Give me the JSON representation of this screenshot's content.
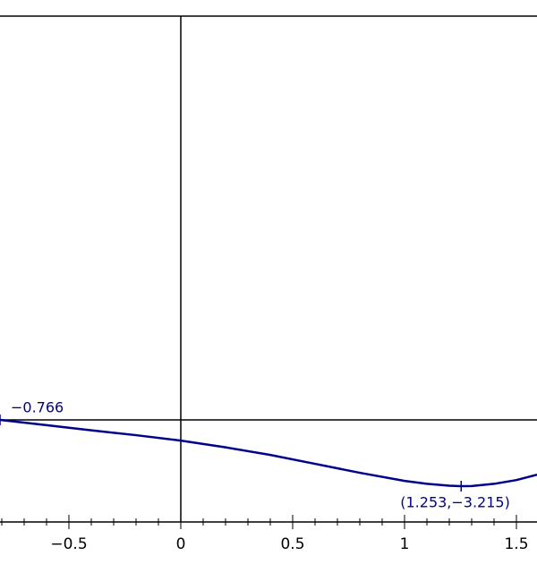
{
  "chart_data": {
    "type": "line",
    "x": [
      -0.808,
      -0.6,
      -0.4,
      -0.2,
      0,
      0.2,
      0.4,
      0.6,
      0.8,
      1,
      1.1,
      1.2,
      1.253,
      1.3,
      1.4,
      1.5,
      1.592
    ],
    "series": [
      {
        "color": "#00008b",
        "values": [
          -0.766,
          -0.96,
          -1.15,
          -1.33,
          -1.53,
          -1.78,
          -2.06,
          -2.39,
          -2.72,
          -3.02,
          -3.13,
          -3.2,
          -3.215,
          -3.21,
          -3.13,
          -2.99,
          -2.79
        ]
      }
    ],
    "xlim": [
      -0.808,
      1.592
    ],
    "ylim": [
      -4.54,
      14.17
    ],
    "xticks": [
      {
        "value": -0.5,
        "label": "−0.5"
      },
      0,
      0.5,
      1,
      1.5
    ],
    "xminorticks": [
      -0.8,
      -0.7,
      -0.6,
      -0.4,
      -0.3,
      -0.2,
      -0.1,
      0.1,
      0.2,
      0.3,
      0.4,
      0.6,
      0.7,
      0.8,
      0.9,
      1.1,
      1.2,
      1.3,
      1.4,
      1.6
    ],
    "hline": -0.766,
    "annotations": [
      {
        "label": "−0.766",
        "x": -0.808,
        "y": -0.766
      },
      {
        "label": "(1.253,−3.215)",
        "x": 1.253,
        "y": -3.215
      }
    ]
  }
}
